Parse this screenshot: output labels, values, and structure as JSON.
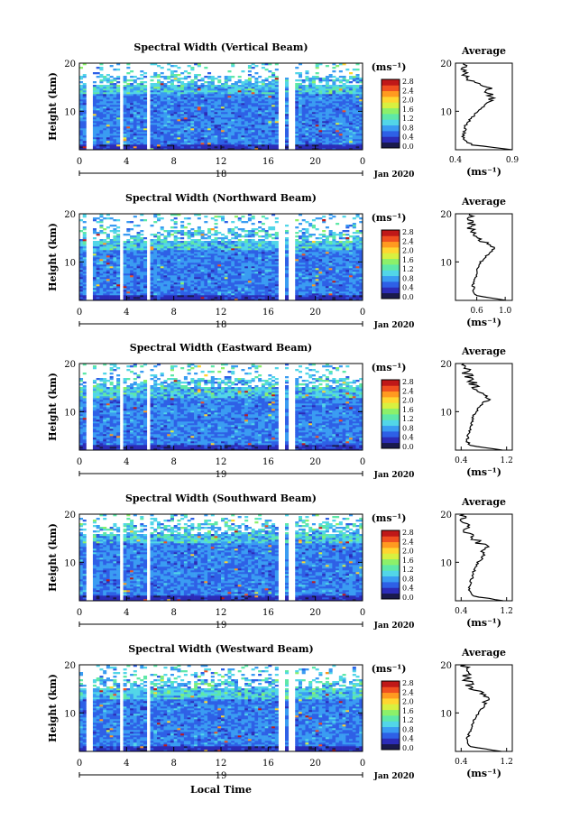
{
  "figure": {
    "xlabel_bottom": "Local Time",
    "date_label": "Jan 2020",
    "colorbar_unit": "(ms⁻¹)",
    "colorbar_ticks": [
      "0.0",
      "0.4",
      "0.8",
      "1.2",
      "1.6",
      "2.0",
      "2.4",
      "2.8"
    ],
    "colorbar_range": [
      0.0,
      2.8
    ],
    "colormap": [
      "#1a1a4d",
      "#2c2cb8",
      "#2e60e6",
      "#3a9cf2",
      "#52d6e8",
      "#5ee8a8",
      "#8cf06a",
      "#d8f040",
      "#ffd630",
      "#ff9a20",
      "#f05020",
      "#c01818"
    ]
  },
  "chart_data": [
    {
      "type": "heatmap",
      "title": "Spectral Width (Vertical Beam)",
      "ylabel": "Height (km)",
      "ylim": [
        2,
        20
      ],
      "yticks": [
        "10",
        "20"
      ],
      "xlim": [
        0,
        24
      ],
      "xtick_labels": [
        "0",
        "4",
        "8",
        "12",
        "16",
        "20",
        "0"
      ],
      "day_label": "18",
      "gaps_hours": [
        [
          0.7,
          1.2
        ],
        [
          3.3,
          3.7
        ],
        [
          5.8,
          6.1
        ],
        [
          17.0,
          17.4
        ],
        [
          17.8,
          18.2
        ]
      ],
      "top_height_km": 15.5,
      "average": {
        "title": "Average",
        "xlabel": "(ms⁻¹)",
        "xlim": [
          0.4,
          0.9
        ],
        "xticks": [
          "0.4",
          "0.9"
        ],
        "profile": [
          [
            2,
            0.9
          ],
          [
            3,
            0.55
          ],
          [
            4,
            0.47
          ],
          [
            5,
            0.47
          ],
          [
            6,
            0.48
          ],
          [
            7,
            0.49
          ],
          [
            8,
            0.52
          ],
          [
            9,
            0.56
          ],
          [
            10,
            0.6
          ],
          [
            11,
            0.65
          ],
          [
            12,
            0.7
          ],
          [
            13,
            0.72
          ],
          [
            14,
            0.66
          ],
          [
            15,
            0.7
          ],
          [
            16,
            0.55
          ],
          [
            17,
            0.5
          ],
          [
            18,
            0.48
          ],
          [
            19,
            0.5
          ],
          [
            20,
            0.47
          ]
        ]
      }
    },
    {
      "type": "heatmap",
      "title": "Spectral Width (Northward Beam)",
      "ylabel": "Height (km)",
      "ylim": [
        2,
        20
      ],
      "yticks": [
        "10",
        "20"
      ],
      "xlim": [
        0,
        24
      ],
      "xtick_labels": [
        "0",
        "4",
        "8",
        "12",
        "16",
        "20",
        "0"
      ],
      "day_label": "18",
      "gaps_hours": [
        [
          0.7,
          1.2
        ],
        [
          3.3,
          3.7
        ],
        [
          5.8,
          6.1
        ],
        [
          17.0,
          17.4
        ],
        [
          17.8,
          18.2
        ]
      ],
      "top_height_km": 14.5,
      "average": {
        "title": "Average",
        "xlabel": "(ms⁻¹)",
        "xlim": [
          0.3,
          1.1
        ],
        "xticks": [
          "0.6",
          "1.0"
        ],
        "profile": [
          [
            2,
            1.0
          ],
          [
            3,
            0.6
          ],
          [
            4,
            0.55
          ],
          [
            5,
            0.55
          ],
          [
            6,
            0.56
          ],
          [
            7,
            0.58
          ],
          [
            8,
            0.6
          ],
          [
            9,
            0.62
          ],
          [
            10,
            0.66
          ],
          [
            11,
            0.72
          ],
          [
            12,
            0.78
          ],
          [
            13,
            0.85
          ],
          [
            14,
            0.7
          ],
          [
            15,
            0.6
          ],
          [
            16,
            0.55
          ],
          [
            17,
            0.5
          ],
          [
            18,
            0.52
          ],
          [
            19,
            0.48
          ],
          [
            20,
            0.5
          ]
        ]
      }
    },
    {
      "type": "heatmap",
      "title": "Spectral Width (Eastward Beam)",
      "ylabel": "Height (km)",
      "ylim": [
        2,
        20
      ],
      "yticks": [
        "10",
        "20"
      ],
      "xlim": [
        0,
        24
      ],
      "xtick_labels": [
        "0",
        "4",
        "8",
        "12",
        "16",
        "20",
        "0"
      ],
      "day_label": "19",
      "gaps_hours": [
        [
          0.7,
          1.2
        ],
        [
          3.3,
          3.7
        ],
        [
          5.8,
          6.1
        ],
        [
          17.0,
          17.4
        ],
        [
          17.8,
          18.2
        ]
      ],
      "top_height_km": 15.0,
      "average": {
        "title": "Average",
        "xlabel": "(ms⁻¹)",
        "xlim": [
          0.3,
          1.3
        ],
        "xticks": [
          "0.4",
          "1.2"
        ],
        "profile": [
          [
            2,
            1.1
          ],
          [
            3,
            0.55
          ],
          [
            4,
            0.5
          ],
          [
            5,
            0.52
          ],
          [
            6,
            0.55
          ],
          [
            7,
            0.58
          ],
          [
            8,
            0.6
          ],
          [
            9,
            0.62
          ],
          [
            10,
            0.66
          ],
          [
            11,
            0.72
          ],
          [
            12,
            0.8
          ],
          [
            13,
            0.9
          ],
          [
            14,
            0.75
          ],
          [
            15,
            0.68
          ],
          [
            16,
            0.6
          ],
          [
            17,
            0.55
          ],
          [
            18,
            0.5
          ],
          [
            19,
            0.48
          ],
          [
            20,
            0.45
          ]
        ]
      }
    },
    {
      "type": "heatmap",
      "title": "Spectral Width (Southward Beam)",
      "ylabel": "Height (km)",
      "ylim": [
        2,
        20
      ],
      "yticks": [
        "10",
        "20"
      ],
      "xlim": [
        0,
        24
      ],
      "xtick_labels": [
        "0",
        "4",
        "8",
        "12",
        "16",
        "20",
        "0"
      ],
      "day_label": "19",
      "gaps_hours": [
        [
          0.7,
          1.2
        ],
        [
          3.3,
          3.7
        ],
        [
          5.8,
          6.1
        ],
        [
          17.0,
          17.4
        ],
        [
          17.8,
          18.2
        ]
      ],
      "top_height_km": 16.0,
      "average": {
        "title": "Average",
        "xlabel": "(ms⁻¹)",
        "xlim": [
          0.3,
          1.3
        ],
        "xticks": [
          "0.4",
          "1.2"
        ],
        "profile": [
          [
            2,
            1.15
          ],
          [
            3,
            0.6
          ],
          [
            4,
            0.55
          ],
          [
            5,
            0.55
          ],
          [
            6,
            0.57
          ],
          [
            7,
            0.6
          ],
          [
            8,
            0.62
          ],
          [
            9,
            0.66
          ],
          [
            10,
            0.7
          ],
          [
            11,
            0.78
          ],
          [
            12,
            0.82
          ],
          [
            13,
            0.85
          ],
          [
            14,
            0.72
          ],
          [
            15,
            0.6
          ],
          [
            16,
            0.55
          ],
          [
            17,
            0.45
          ],
          [
            18,
            0.48
          ],
          [
            19,
            0.42
          ],
          [
            20,
            0.45
          ]
        ]
      }
    },
    {
      "type": "heatmap",
      "title": "Spectral Width (Westward Beam)",
      "ylabel": "Height (km)",
      "ylim": [
        2,
        20
      ],
      "yticks": [
        "10",
        "20"
      ],
      "xlim": [
        0,
        24
      ],
      "xtick_labels": [
        "0",
        "4",
        "8",
        "12",
        "16",
        "20",
        "0"
      ],
      "day_label": "19",
      "gaps_hours": [
        [
          0.7,
          1.2
        ],
        [
          3.3,
          3.7
        ],
        [
          5.8,
          6.1
        ],
        [
          17.0,
          17.4
        ],
        [
          17.8,
          18.2
        ]
      ],
      "top_height_km": 15.0,
      "average": {
        "title": "Average",
        "xlabel": "(ms⁻¹)",
        "xlim": [
          0.3,
          1.3
        ],
        "xticks": [
          "0.4",
          "1.2"
        ],
        "profile": [
          [
            2,
            1.1
          ],
          [
            3,
            0.55
          ],
          [
            4,
            0.5
          ],
          [
            5,
            0.52
          ],
          [
            6,
            0.55
          ],
          [
            7,
            0.58
          ],
          [
            8,
            0.62
          ],
          [
            9,
            0.65
          ],
          [
            10,
            0.7
          ],
          [
            11,
            0.78
          ],
          [
            12,
            0.85
          ],
          [
            13,
            0.92
          ],
          [
            14,
            0.75
          ],
          [
            15,
            0.6
          ],
          [
            16,
            0.55
          ],
          [
            17,
            0.48
          ],
          [
            18,
            0.52
          ],
          [
            19,
            0.45
          ],
          [
            20,
            0.48
          ]
        ]
      }
    }
  ]
}
